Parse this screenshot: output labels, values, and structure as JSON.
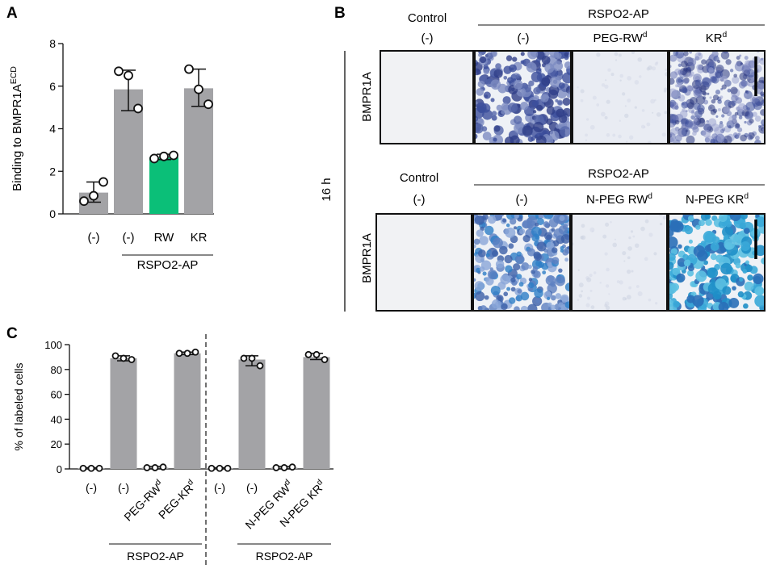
{
  "panels": {
    "a": "A",
    "b": "B",
    "c": "C"
  },
  "colors": {
    "bar_gray": "#a3a3a6",
    "bar_green": "#0bbf78",
    "stain_dark": "#3c4f9c",
    "stain_blue": "#2d7ec7",
    "stain_cyan": "#3aa9d8",
    "background_stain": "#eef1f6"
  },
  "chart_data": [
    {
      "panel": "A",
      "type": "bar",
      "ylabel": "Binding to BMPR1A",
      "ylabel_sup": "ECD",
      "ylim": [
        0,
        8
      ],
      "yticks": [
        0,
        2,
        4,
        6,
        8
      ],
      "categories": [
        "(-)",
        "(-)",
        "RW",
        "KR"
      ],
      "values": [
        1.0,
        5.85,
        2.65,
        5.9
      ],
      "error_low": [
        0.55,
        4.85,
        2.55,
        5.05
      ],
      "error_high": [
        1.5,
        6.75,
        2.8,
        6.8
      ],
      "points": [
        [
          0.6,
          1.5,
          0.85
        ],
        [
          6.7,
          4.95,
          6.5
        ],
        [
          2.6,
          2.75,
          2.7
        ],
        [
          6.8,
          5.15,
          5.85
        ]
      ],
      "bar_colors": [
        "#a3a3a6",
        "#a3a3a6",
        "#0bbf78",
        "#a3a3a6"
      ],
      "group_label": "RSPO2-AP",
      "group_span": [
        1,
        3
      ]
    },
    {
      "panel": "C",
      "type": "bar",
      "ylabel": "% of labeled cells",
      "ylim": [
        0,
        100
      ],
      "yticks": [
        0,
        20,
        40,
        60,
        80,
        100
      ],
      "categories": [
        "(-)",
        "(-)",
        "PEG-RW",
        "PEG-KR",
        "(-)",
        "(-)",
        "N-PEG RW",
        "N-PEG KR"
      ],
      "category_sup": [
        "",
        "",
        "d",
        "d",
        "",
        "",
        "d",
        "d"
      ],
      "values": [
        0.5,
        89,
        1,
        93,
        0.5,
        88,
        1,
        90
      ],
      "error_low": [
        0,
        87,
        0,
        92,
        0,
        83,
        0,
        88
      ],
      "error_high": [
        1,
        91,
        2,
        94,
        1,
        91,
        2,
        93
      ],
      "points": [
        [
          0.5,
          0.5,
          0.5
        ],
        [
          91,
          88,
          89
        ],
        [
          1,
          1.5,
          1
        ],
        [
          93,
          94,
          93
        ],
        [
          0.5,
          0.5,
          0.5
        ],
        [
          89,
          83,
          89
        ],
        [
          1,
          1.5,
          1
        ],
        [
          92,
          88,
          92
        ]
      ],
      "group_label": "RSPO2-AP",
      "groups": [
        [
          1,
          3
        ],
        [
          5,
          7
        ]
      ]
    }
  ],
  "panel_b": {
    "time_label": "16 h",
    "row_label": "BMPR1A",
    "rows": [
      {
        "control_label": "Control",
        "group_label": "RSPO2-AP",
        "columns": [
          {
            "label": "(-)",
            "sup": "",
            "stain": "none"
          },
          {
            "label": "(-)",
            "sup": "",
            "stain": "heavy-dark"
          },
          {
            "label": "PEG-RW",
            "sup": "d",
            "stain": "faint"
          },
          {
            "label": "KR",
            "sup": "d",
            "stain": "dense-dark",
            "scale_bar": true
          }
        ]
      },
      {
        "control_label": "Control",
        "group_label": "RSPO2-AP",
        "columns": [
          {
            "label": "(-)",
            "sup": "",
            "stain": "none"
          },
          {
            "label": "(-)",
            "sup": "",
            "stain": "heavy-blue"
          },
          {
            "label": "N-PEG RW",
            "sup": "d",
            "stain": "faint"
          },
          {
            "label": "N-PEG KR",
            "sup": "d",
            "stain": "clumps-cyan",
            "scale_bar": true
          }
        ]
      }
    ]
  }
}
